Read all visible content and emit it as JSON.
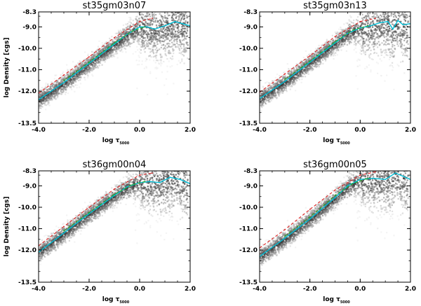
{
  "chart_data": [
    {
      "type": "scatter",
      "title": "st35gm03n07",
      "xlabel": "log τ",
      "xlabel_sub": "5000",
      "ylabel": "log Density [cgs]",
      "xlim": [
        -4.0,
        2.0
      ],
      "ylim": [
        -13.5,
        -8.3
      ],
      "xticks": [
        -4.0,
        -2.0,
        0.0,
        2.0
      ],
      "xtick_labels": [
        "-4.0",
        "-2.0",
        "0.0",
        "2.0"
      ],
      "yticks": [
        -8.3,
        -9.0,
        -10.0,
        -11.0,
        -12.0,
        -13.5
      ],
      "ytick_labels": [
        "-8.3",
        "-9.0",
        "-10.0",
        "-11.0",
        "-12.0",
        "-13.5"
      ],
      "series": [
        {
          "style": "cyan-solid",
          "color": "#00bcd4",
          "x": [
            -4.0,
            -3.0,
            -2.0,
            -1.0,
            -0.5,
            0.0,
            0.3,
            0.6,
            1.0,
            1.4,
            1.7,
            2.0
          ],
          "y": [
            -12.4,
            -11.6,
            -10.7,
            -9.8,
            -9.35,
            -9.0,
            -9.0,
            -9.1,
            -8.95,
            -8.75,
            -8.85,
            -8.95
          ]
        },
        {
          "style": "green-dashed",
          "color": "#22aa22",
          "x": [
            -3.0,
            -2.0,
            -1.0,
            -0.3,
            0.2
          ],
          "y": [
            -11.5,
            -10.65,
            -9.75,
            -9.2,
            -9.0
          ]
        },
        {
          "style": "red-dashed",
          "color": "#dd2222",
          "x": [
            -4.0,
            -3.0,
            -2.0,
            -1.0,
            0.0,
            0.5
          ],
          "y": [
            -12.1,
            -11.25,
            -10.4,
            -9.5,
            -8.75,
            -8.6
          ]
        }
      ]
    },
    {
      "type": "scatter",
      "title": "st35gm03n13",
      "xlabel": "log τ",
      "xlabel_sub": "5000",
      "ylabel": "",
      "xlim": [
        -4.0,
        2.0
      ],
      "ylim": [
        -13.5,
        -8.3
      ],
      "xticks": [
        -4.0,
        -2.0,
        0.0,
        2.0
      ],
      "xtick_labels": [
        "-4.0",
        "-2.0",
        "0.0",
        "2.0"
      ],
      "yticks": [
        -8.3,
        -9.0,
        -10.0,
        -11.0,
        -12.0,
        -13.5
      ],
      "ytick_labels": [
        "-8.3",
        "-9.0",
        "-10.0",
        "-11.0",
        "-12.0",
        "-13.5"
      ],
      "series": [
        {
          "style": "cyan-solid",
          "color": "#00bcd4",
          "x": [
            -4.0,
            -3.0,
            -2.0,
            -1.0,
            -0.5,
            0.0,
            0.4,
            0.8,
            1.1,
            1.3,
            1.5,
            1.7,
            2.0
          ],
          "y": [
            -12.35,
            -11.55,
            -10.65,
            -9.75,
            -9.3,
            -9.05,
            -8.95,
            -8.8,
            -8.75,
            -9.1,
            -8.7,
            -8.9,
            -8.85
          ]
        },
        {
          "style": "green-dashed",
          "color": "#22aa22",
          "x": [
            -3.0,
            -2.0,
            -1.0,
            -0.3,
            0.3
          ],
          "y": [
            -11.45,
            -10.6,
            -9.7,
            -9.15,
            -8.95
          ]
        },
        {
          "style": "red-dashed",
          "color": "#dd2222",
          "x": [
            -4.0,
            -3.0,
            -2.0,
            -1.0,
            0.0,
            0.6
          ],
          "y": [
            -12.05,
            -11.2,
            -10.35,
            -9.45,
            -8.75,
            -8.6
          ]
        }
      ]
    },
    {
      "type": "scatter",
      "title": "st36gm00n04",
      "xlabel": "log τ",
      "xlabel_sub": "5000",
      "ylabel": "log Density [cgs]",
      "xlim": [
        -4.0,
        2.0
      ],
      "ylim": [
        -13.5,
        -8.3
      ],
      "xticks": [
        -4.0,
        -2.0,
        0.0,
        2.0
      ],
      "xtick_labels": [
        "-4.0",
        "-2.0",
        "0.0",
        "2.0"
      ],
      "yticks": [
        -8.3,
        -9.0,
        -10.0,
        -11.0,
        -12.0,
        -13.5
      ],
      "ytick_labels": [
        "-8.3",
        "-9.0",
        "-10.0",
        "-11.0",
        "-12.0",
        "-13.5"
      ],
      "series": [
        {
          "style": "cyan-solid",
          "color": "#00bcd4",
          "x": [
            -4.0,
            -3.0,
            -2.0,
            -1.0,
            -0.5,
            0.0,
            0.4,
            0.8,
            1.2,
            1.6,
            2.0
          ],
          "y": [
            -12.1,
            -11.2,
            -10.3,
            -9.45,
            -9.05,
            -8.85,
            -8.8,
            -8.85,
            -8.6,
            -8.7,
            -8.9
          ]
        },
        {
          "style": "green-dashed",
          "color": "#22aa22",
          "x": [
            -3.0,
            -2.0,
            -1.0,
            -0.3,
            0.2
          ],
          "y": [
            -11.1,
            -10.25,
            -9.4,
            -8.95,
            -8.8
          ]
        },
        {
          "style": "red-dashed",
          "color": "#dd2222",
          "x": [
            -4.0,
            -3.0,
            -2.0,
            -1.0,
            0.0,
            0.5
          ],
          "y": [
            -11.8,
            -10.9,
            -10.0,
            -9.15,
            -8.5,
            -8.4
          ]
        }
      ]
    },
    {
      "type": "scatter",
      "title": "st36gm00n05",
      "xlabel": "log τ",
      "xlabel_sub": "5000",
      "ylabel": "",
      "xlim": [
        -4.0,
        2.0
      ],
      "ylim": [
        -13.5,
        -8.3
      ],
      "xticks": [
        -4.0,
        -2.0,
        0.0,
        2.0
      ],
      "xtick_labels": [
        "-4.0",
        "-2.0",
        "0.0",
        "2.0"
      ],
      "yticks": [
        -8.3,
        -9.0,
        -10.0,
        -11.0,
        -12.0,
        -13.5
      ],
      "ytick_labels": [
        "-8.3",
        "-9.0",
        "-10.0",
        "-11.0",
        "-12.0",
        "-13.5"
      ],
      "series": [
        {
          "style": "cyan-solid",
          "color": "#00bcd4",
          "x": [
            -4.0,
            -3.0,
            -2.0,
            -1.0,
            -0.5,
            0.0,
            0.5,
            1.0,
            1.4,
            1.7,
            2.0
          ],
          "y": [
            -12.3,
            -11.45,
            -10.55,
            -9.55,
            -9.0,
            -8.7,
            -8.65,
            -8.7,
            -8.4,
            -8.55,
            -8.7
          ]
        },
        {
          "style": "green-dashed",
          "color": "#22aa22",
          "x": [
            -3.0,
            -2.0,
            -1.0,
            -0.3,
            0.3
          ],
          "y": [
            -11.35,
            -10.45,
            -9.45,
            -8.9,
            -8.65
          ]
        },
        {
          "style": "red-dashed",
          "color": "#dd2222",
          "x": [
            -4.0,
            -3.0,
            -2.0,
            -1.0,
            0.0,
            0.6
          ],
          "y": [
            -11.9,
            -11.05,
            -10.1,
            -9.2,
            -8.5,
            -8.35
          ]
        }
      ]
    }
  ]
}
